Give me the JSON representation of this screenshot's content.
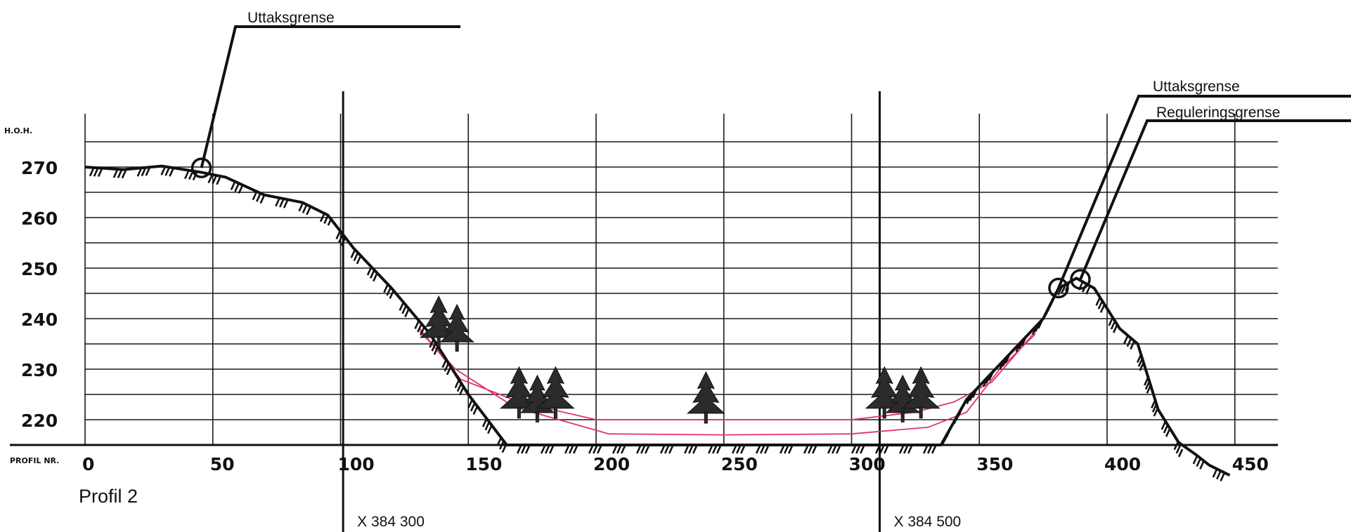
{
  "chart_data": {
    "type": "cross-section profile",
    "title": "Profil 2",
    "y_axis_label": "H.O.H.",
    "x_axis_label": "PROFIL NR.",
    "y_ticks": [
      "220",
      "230",
      "240",
      "250",
      "260",
      "270"
    ],
    "x_ticks": [
      "0",
      "50",
      "100",
      "150",
      "200",
      "250",
      "300",
      "350",
      "400",
      "450"
    ],
    "y_range": [
      215,
      275
    ],
    "x_range": [
      0,
      465
    ],
    "terrain": [
      [
        0,
        270
      ],
      [
        15,
        269.5
      ],
      [
        30,
        270.2
      ],
      [
        45,
        269
      ],
      [
        55,
        268
      ],
      [
        70,
        264.5
      ],
      [
        85,
        263
      ],
      [
        95,
        260.5
      ],
      [
        105,
        254
      ],
      [
        120,
        246
      ],
      [
        135,
        237
      ],
      [
        150,
        225
      ],
      [
        165,
        215
      ],
      [
        335,
        215
      ],
      [
        345,
        224
      ],
      [
        360,
        232
      ],
      [
        375,
        240
      ],
      [
        381,
        246
      ],
      [
        388,
        248
      ],
      [
        395,
        246
      ],
      [
        405,
        238
      ],
      [
        412,
        235
      ],
      [
        420,
        222
      ],
      [
        428,
        215.5
      ],
      [
        435,
        213
      ],
      [
        440,
        211
      ],
      [
        448,
        209
      ]
    ],
    "reguleringsgrense_line": [
      [
        131,
        238
      ],
      [
        147,
        228
      ],
      [
        170,
        223.5
      ],
      [
        200,
        220
      ],
      [
        250,
        220
      ],
      [
        300,
        220
      ],
      [
        325,
        221.5
      ],
      [
        340,
        223.5
      ],
      [
        355,
        227.5
      ],
      [
        372,
        237.5
      ]
    ],
    "uttaksgrense_line": [
      [
        131,
        237.5
      ],
      [
        145,
        230
      ],
      [
        168,
        222.5
      ],
      [
        205,
        217.2
      ],
      [
        250,
        217
      ],
      [
        300,
        217.2
      ],
      [
        330,
        218.5
      ],
      [
        345,
        221.5
      ],
      [
        358,
        230
      ],
      [
        372,
        237
      ]
    ],
    "annotations": [
      {
        "label": "Uttaksgrense",
        "at": [
          45,
          269
        ]
      },
      {
        "label": "Uttaksgrense",
        "at": [
          381,
          245.5
        ]
      },
      {
        "label": "Reguleringsgrense",
        "at": [
          389,
          247.5
        ]
      }
    ],
    "coordinate_lines": [
      {
        "label": "X 384 300",
        "x": 101
      },
      {
        "label": "X 384 500",
        "x": 311
      }
    ],
    "trees": [
      {
        "x": 142,
        "y": 240,
        "cluster": 2
      },
      {
        "x": 177,
        "y": 226,
        "cluster": 3
      },
      {
        "x": 243,
        "y": 225,
        "cluster": 1
      },
      {
        "x": 320,
        "y": 226,
        "cluster": 3
      }
    ]
  }
}
